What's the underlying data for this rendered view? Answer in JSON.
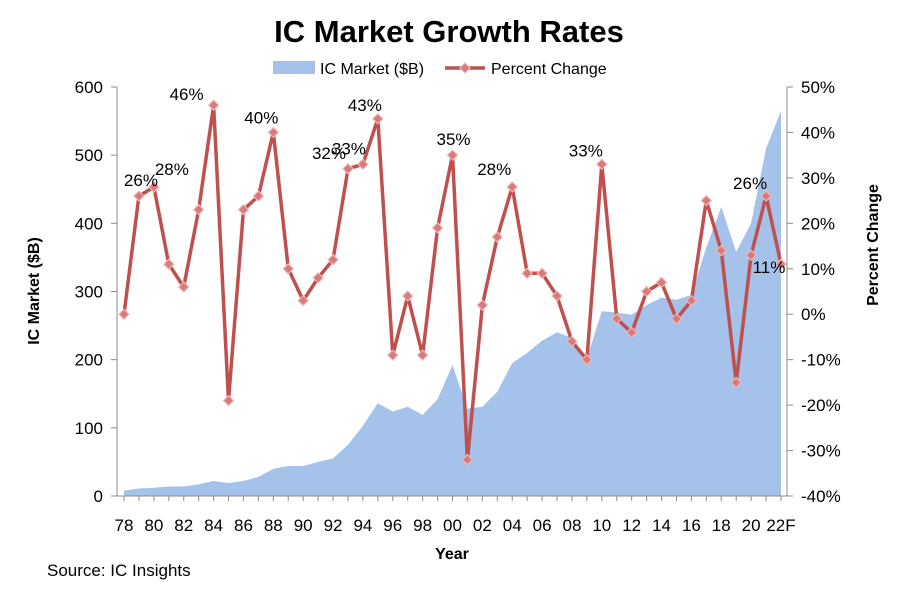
{
  "chart_data": {
    "type": "area+line",
    "title": "IC Market Growth Rates",
    "xlabel": "Year",
    "ylabel_left": "IC Market ($B)",
    "ylabel_right": "Percent Change",
    "ylim_left": [
      0,
      600
    ],
    "ylim_right": [
      -40,
      50
    ],
    "yticks_left": [
      "0",
      "100",
      "200",
      "300",
      "400",
      "500",
      "600"
    ],
    "yticks_right": [
      "-40%",
      "-30%",
      "-20%",
      "-10%",
      "0%",
      "10%",
      "20%",
      "30%",
      "40%",
      "50%"
    ],
    "xtick_labels": [
      "78",
      "80",
      "82",
      "84",
      "86",
      "88",
      "90",
      "92",
      "94",
      "96",
      "98",
      "00",
      "02",
      "04",
      "06",
      "08",
      "10",
      "12",
      "14",
      "16",
      "18",
      "20",
      "22F"
    ],
    "x": [
      "1978",
      "1979",
      "1980",
      "1981",
      "1982",
      "1983",
      "1984",
      "1985",
      "1986",
      "1987",
      "1988",
      "1989",
      "1990",
      "1991",
      "1992",
      "1993",
      "1994",
      "1995",
      "1996",
      "1997",
      "1998",
      "1999",
      "2000",
      "2001",
      "2002",
      "2003",
      "2004",
      "2005",
      "2006",
      "2007",
      "2008",
      "2009",
      "2010",
      "2011",
      "2012",
      "2013",
      "2014",
      "2015",
      "2016",
      "2017",
      "2018",
      "2019",
      "2020",
      "2021",
      "2022F"
    ],
    "legend": {
      "position": "top",
      "entries": [
        "IC Market ($B)",
        "Percent Change"
      ]
    },
    "series": [
      {
        "name": "IC Market ($B)",
        "type": "area",
        "axis": "left",
        "color": "#a4c2ea",
        "values": [
          8,
          11,
          12,
          14,
          14,
          17,
          22,
          19,
          22,
          28,
          40,
          44,
          44,
          50,
          55,
          75,
          103,
          136,
          124,
          131,
          119,
          142,
          192,
          128,
          131,
          153,
          195,
          210,
          228,
          240,
          232,
          202,
          271,
          269,
          266,
          280,
          291,
          288,
          295,
          365,
          424,
          358,
          400,
          510,
          565
        ]
      },
      {
        "name": "Percent Change",
        "type": "line",
        "axis": "right",
        "color": "#c0504d",
        "values": [
          0,
          26,
          28,
          11,
          6,
          23,
          46,
          -19,
          23,
          26,
          40,
          10,
          3,
          8,
          12,
          32,
          33,
          43,
          -9,
          4,
          -9,
          19,
          35,
          -32,
          2,
          17,
          28,
          9,
          9,
          4,
          -6,
          -10,
          33,
          -1,
          -4,
          5,
          7,
          -1,
          3,
          25,
          14,
          -15,
          13,
          26,
          11
        ]
      }
    ],
    "data_labels": [
      {
        "index": 1,
        "text": "26%"
      },
      {
        "index": 2,
        "text": "28%"
      },
      {
        "index": 6,
        "text": "46%"
      },
      {
        "index": 10,
        "text": "40%"
      },
      {
        "index": 15,
        "text": "32%"
      },
      {
        "index": 16,
        "text": "33%"
      },
      {
        "index": 17,
        "text": "43%"
      },
      {
        "index": 22,
        "text": "35%"
      },
      {
        "index": 26,
        "text": "28%"
      },
      {
        "index": 32,
        "text": "33%"
      },
      {
        "index": 43,
        "text": "26%"
      },
      {
        "index": 44,
        "text": "11%"
      }
    ],
    "grid": false
  },
  "source": "Source:  IC Insights"
}
